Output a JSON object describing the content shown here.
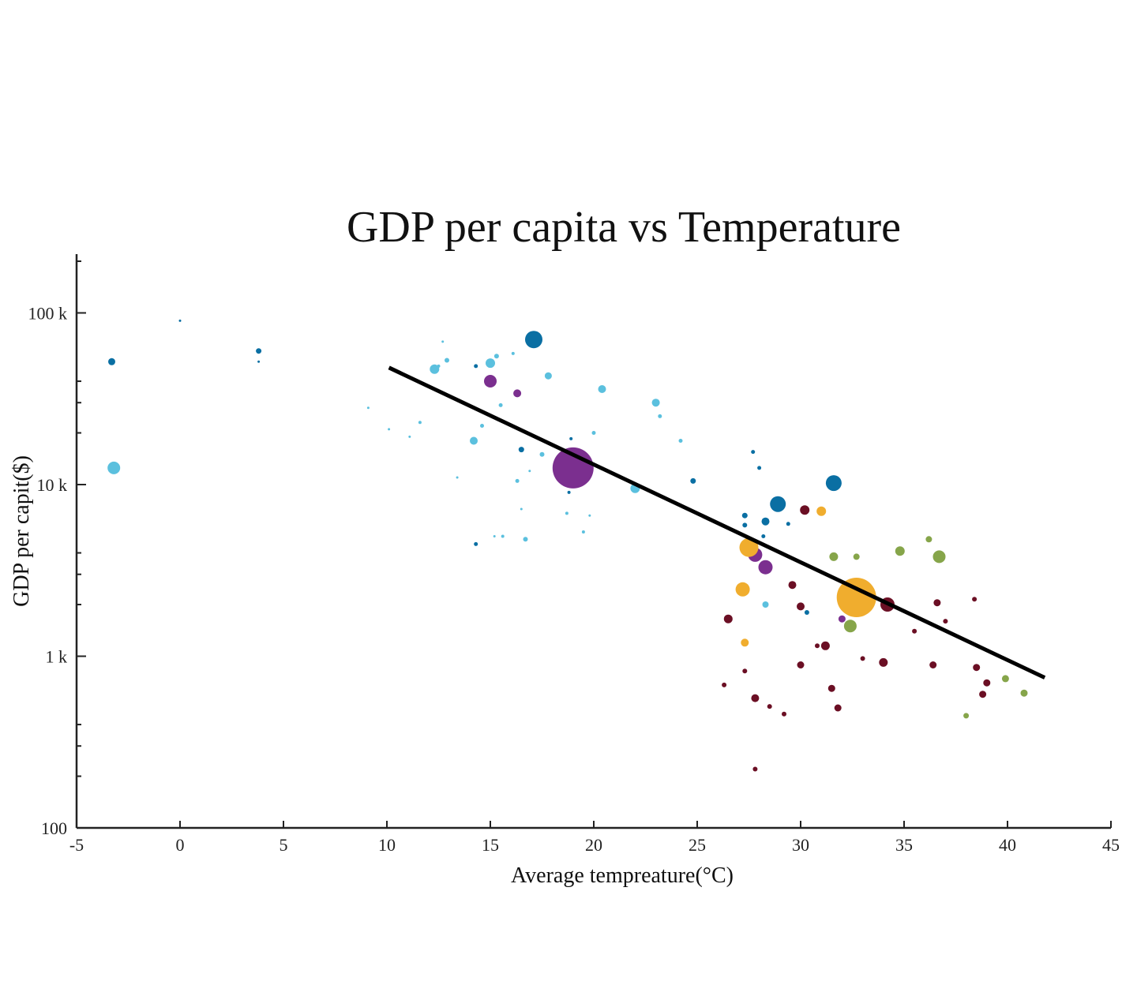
{
  "chart_data": {
    "type": "scatter",
    "title": "GDP per capita vs Temperature",
    "xlabel": "Average tempreature(°C)",
    "ylabel": "GDP per capit($)",
    "xlim": [
      -5,
      45
    ],
    "ylim": [
      100,
      220000
    ],
    "yscale": "log",
    "x_ticks": [
      -5,
      0,
      5,
      10,
      15,
      20,
      25,
      30,
      35,
      40,
      45
    ],
    "x_tick_labels": [
      "-5",
      "0",
      "5",
      "10",
      "15",
      "20",
      "25",
      "30",
      "35",
      "40",
      "45"
    ],
    "y_ticks": [
      100,
      1000,
      10000,
      100000
    ],
    "y_tick_labels": [
      "100",
      "1 k",
      "10 k",
      "100 k"
    ],
    "trend_line": {
      "x": [
        10.1,
        41.8
      ],
      "y": [
        48000,
        750
      ]
    },
    "colors": {
      "light_blue": "#5bc0de",
      "dark_blue": "#0a6fa3",
      "purple": "#7b2f8f",
      "orange": "#f0ad2e",
      "maroon": "#6b0f24",
      "olive": "#86a54a",
      "trend": "#000000"
    },
    "series": [
      {
        "name": "light_blue",
        "color": "#5bc0de",
        "points": [
          [
            -3.2,
            12500,
            8
          ],
          [
            12.3,
            47000,
            6
          ],
          [
            15.0,
            51000,
            6
          ],
          [
            17.8,
            43000,
            4.5
          ],
          [
            20.4,
            36000,
            5
          ],
          [
            23.0,
            30000,
            5
          ],
          [
            14.2,
            18000,
            5
          ],
          [
            22.0,
            9500,
            6
          ],
          [
            28.3,
            2000,
            4
          ],
          [
            16.7,
            4800,
            3
          ],
          [
            15.3,
            56000,
            3
          ],
          [
            12.9,
            53000,
            3
          ],
          [
            15.5,
            29000,
            2.5
          ],
          [
            14.6,
            22000,
            2.5
          ],
          [
            20.0,
            20000,
            2.5
          ],
          [
            23.2,
            25000,
            2.5
          ],
          [
            24.2,
            18000,
            2.5
          ],
          [
            16.3,
            10500,
            2.5
          ],
          [
            17.5,
            15000,
            3
          ],
          [
            15.6,
            5000,
            2
          ],
          [
            11.6,
            23000,
            2
          ],
          [
            16.1,
            58000,
            2
          ],
          [
            12.5,
            49000,
            2
          ],
          [
            18.7,
            6800,
            2
          ],
          [
            19.5,
            5300,
            2
          ],
          [
            19.8,
            6600,
            1.5
          ],
          [
            16.5,
            7200,
            1.5
          ],
          [
            9.1,
            28000,
            1.5
          ],
          [
            10.1,
            21000,
            1.5
          ],
          [
            11.1,
            19000,
            1.5
          ],
          [
            15.2,
            5000,
            1.5
          ],
          [
            13.4,
            11000,
            1.5
          ],
          [
            16.9,
            12000,
            1.5
          ],
          [
            12.7,
            68000,
            1.5
          ]
        ]
      },
      {
        "name": "dark_blue",
        "color": "#0a6fa3",
        "points": [
          [
            -3.3,
            52000,
            4.5
          ],
          [
            3.8,
            60000,
            3.5
          ],
          [
            3.8,
            52000,
            1.5
          ],
          [
            17.1,
            70000,
            11
          ],
          [
            31.6,
            10200,
            10
          ],
          [
            28.9,
            7700,
            10
          ],
          [
            16.5,
            16000,
            3.5
          ],
          [
            24.8,
            10500,
            3.5
          ],
          [
            28.3,
            6100,
            5
          ],
          [
            27.3,
            6600,
            3.5
          ],
          [
            27.3,
            5800,
            3
          ],
          [
            29.4,
            5900,
            2.5
          ],
          [
            27.7,
            15500,
            2.5
          ],
          [
            28.0,
            12500,
            2.5
          ],
          [
            28.2,
            5000,
            2.5
          ],
          [
            30.3,
            1800,
            3
          ],
          [
            18.8,
            9000,
            2
          ],
          [
            18.9,
            18500,
            2
          ],
          [
            14.3,
            4500,
            2.5
          ],
          [
            14.3,
            49000,
            2.5
          ],
          [
            0.0,
            90000,
            1.5
          ]
        ]
      },
      {
        "name": "purple",
        "color": "#7b2f8f",
        "points": [
          [
            19.0,
            12500,
            26
          ],
          [
            15.0,
            40000,
            8
          ],
          [
            27.8,
            3900,
            9
          ],
          [
            28.3,
            3300,
            9
          ],
          [
            16.3,
            34000,
            5
          ],
          [
            32.0,
            1650,
            4.5
          ]
        ]
      },
      {
        "name": "orange",
        "color": "#f0ad2e",
        "points": [
          [
            32.7,
            2200,
            25
          ],
          [
            27.5,
            4300,
            12
          ],
          [
            27.2,
            2450,
            9
          ],
          [
            31.0,
            7000,
            6
          ],
          [
            27.3,
            1200,
            5
          ]
        ]
      },
      {
        "name": "maroon",
        "color": "#6b0f24",
        "points": [
          [
            34.2,
            2000,
            9
          ],
          [
            30.2,
            7100,
            6
          ],
          [
            26.5,
            1650,
            5.5
          ],
          [
            29.6,
            2600,
            5
          ],
          [
            30.0,
            1950,
            5
          ],
          [
            31.2,
            1150,
            5.5
          ],
          [
            34.0,
            920,
            5.5
          ],
          [
            30.0,
            890,
            4.5
          ],
          [
            31.5,
            650,
            4.5
          ],
          [
            31.8,
            500,
            4.5
          ],
          [
            27.8,
            570,
            5
          ],
          [
            36.4,
            890,
            4.5
          ],
          [
            36.6,
            2050,
            4.5
          ],
          [
            38.5,
            860,
            4.5
          ],
          [
            39.0,
            700,
            4.5
          ],
          [
            38.8,
            600,
            4.5
          ],
          [
            35.5,
            1400,
            3
          ],
          [
            37.0,
            1600,
            3
          ],
          [
            38.4,
            2150,
            3
          ],
          [
            30.8,
            1150,
            3
          ],
          [
            33.0,
            970,
            3
          ],
          [
            27.3,
            820,
            3
          ],
          [
            26.3,
            680,
            3
          ],
          [
            28.5,
            510,
            3
          ],
          [
            29.2,
            460,
            3
          ],
          [
            27.8,
            220,
            3
          ]
        ]
      },
      {
        "name": "olive",
        "color": "#86a54a",
        "points": [
          [
            36.7,
            3800,
            8
          ],
          [
            32.4,
            1500,
            8
          ],
          [
            34.8,
            4100,
            6
          ],
          [
            31.6,
            3800,
            5.5
          ],
          [
            32.7,
            3800,
            4
          ],
          [
            36.2,
            4800,
            4
          ],
          [
            39.9,
            740,
            4.5
          ],
          [
            40.8,
            610,
            4.5
          ],
          [
            38.0,
            450,
            3.5
          ]
        ]
      }
    ]
  }
}
